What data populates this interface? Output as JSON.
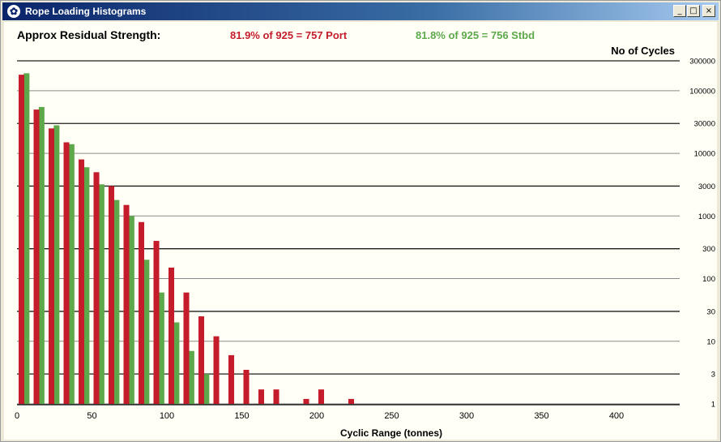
{
  "window": {
    "title": "Rope Loading Histograms",
    "icon": "rope-icon",
    "controls": {
      "minimize": "_",
      "maximize": "□",
      "close": "×"
    }
  },
  "strength": {
    "label": "Approx Residual Strength:",
    "port": "81.9% of 925 = 757 Port",
    "stbd": "81.8% of 925 = 756 Stbd"
  },
  "colors": {
    "port": "#c51c2c",
    "stbd": "#5ea84c",
    "background": "#fffff6"
  },
  "chart_data": {
    "type": "bar",
    "ylabel": "No of Cycles",
    "xlabel": "Cyclic Range (tonnes)",
    "x_ticks": [
      "0",
      "50",
      "100",
      "150",
      "200",
      "250",
      "300",
      "350",
      "400"
    ],
    "y_ticks": [
      "1",
      "3",
      "10",
      "30",
      "100",
      "300",
      "1000",
      "3000",
      "10000",
      "30000",
      "100000",
      "300000"
    ],
    "y_scale": "log",
    "ylim": [
      1,
      300000
    ],
    "xlim": [
      0,
      440
    ],
    "bin_width": 10,
    "x": [
      0,
      10,
      20,
      30,
      40,
      50,
      60,
      70,
      80,
      90,
      100,
      110,
      120,
      130,
      140,
      150,
      160,
      170,
      180,
      190,
      200,
      210,
      220
    ],
    "series": [
      {
        "name": "Port",
        "values": [
          180000,
          50000,
          25000,
          15000,
          8000,
          5000,
          3000,
          1500,
          800,
          400,
          150,
          60,
          25,
          12,
          6,
          3.5,
          1.7,
          1.7,
          0,
          1.2,
          1.7,
          0,
          1.2
        ]
      },
      {
        "name": "Stbd",
        "values": [
          190000,
          55000,
          28000,
          14000,
          6000,
          3200,
          1800,
          1000,
          200,
          60,
          20,
          7,
          3,
          0,
          0,
          0,
          0,
          0,
          0,
          0,
          0,
          0,
          0
        ]
      }
    ],
    "grid": true
  }
}
